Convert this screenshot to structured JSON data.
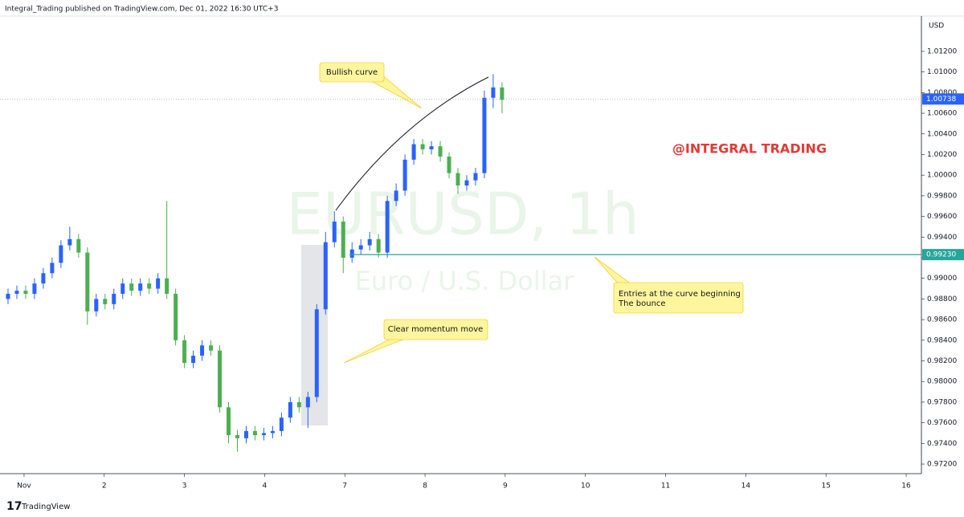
{
  "header": "Integral_Trading published on TradingView.com, Dec 01, 2022 16:30 UTC+3",
  "footer": "TradingView",
  "chart_data": {
    "type": "candlestick",
    "watermark": "EURUSD, 1h",
    "watermark_subtitle": "Euro / U.S. Dollar",
    "brand": "@INTEGRAL TRADING",
    "y_axis_unit": "USD",
    "up_color": "#2962ff",
    "down_color": "#4caf50",
    "grid": false,
    "annotations": {
      "bullish": "Bullish curve",
      "momentum": "Clear momentum move",
      "entries": [
        "Entries at the curve beginning",
        "The bounce"
      ]
    },
    "last_price": {
      "value": 1.00738,
      "label": "1.00738"
    },
    "level": {
      "value": 0.9923,
      "label": "0.99230"
    },
    "xlim": [
      -0.3,
      11.19
    ],
    "xticks": [
      {
        "value": 0,
        "label": "Nov"
      },
      {
        "value": 1,
        "label": "2"
      },
      {
        "value": 2,
        "label": "3"
      },
      {
        "value": 3,
        "label": "4"
      },
      {
        "value": 4,
        "label": "7"
      },
      {
        "value": 5,
        "label": "8"
      },
      {
        "value": 6,
        "label": "9"
      },
      {
        "value": 7,
        "label": "10"
      },
      {
        "value": 8,
        "label": "11"
      },
      {
        "value": 9,
        "label": "14"
      },
      {
        "value": 10,
        "label": "15"
      },
      {
        "value": 11,
        "label": "16"
      }
    ],
    "ylim": [
      0.97107,
      1.01542
    ],
    "yticks": [
      {
        "value": 0.972,
        "label": "0.97200"
      },
      {
        "value": 0.974,
        "label": "0.97400"
      },
      {
        "value": 0.976,
        "label": "0.97600"
      },
      {
        "value": 0.978,
        "label": "0.97800"
      },
      {
        "value": 0.98,
        "label": "0.98000"
      },
      {
        "value": 0.982,
        "label": "0.98200"
      },
      {
        "value": 0.984,
        "label": "0.98400"
      },
      {
        "value": 0.986,
        "label": "0.98600"
      },
      {
        "value": 0.988,
        "label": "0.98800"
      },
      {
        "value": 0.99,
        "label": "0.99000"
      },
      {
        "value": 0.992,
        "label": "0.99200"
      },
      {
        "value": 0.994,
        "label": "0.99400"
      },
      {
        "value": 0.996,
        "label": "0.99600"
      },
      {
        "value": 0.998,
        "label": "0.99800"
      },
      {
        "value": 1.0,
        "label": "1.00000"
      },
      {
        "value": 1.002,
        "label": "1.00200"
      },
      {
        "value": 1.004,
        "label": "1.00400"
      },
      {
        "value": 1.006,
        "label": "1.00600"
      },
      {
        "value": 1.008,
        "label": "1.00800"
      },
      {
        "value": 1.01,
        "label": "1.01000"
      },
      {
        "value": 1.012,
        "label": "1.01200"
      }
    ],
    "x": [
      -0.2,
      -0.09,
      0.02,
      0.13,
      0.24,
      0.35,
      0.46,
      0.57,
      0.68,
      0.79,
      0.9,
      1.01,
      1.12,
      1.23,
      1.34,
      1.45,
      1.56,
      1.67,
      1.78,
      1.89,
      2.0,
      2.11,
      2.22,
      2.33,
      2.44,
      2.55,
      2.66,
      2.77,
      2.88,
      2.99,
      3.1,
      3.21,
      3.32,
      3.43,
      3.54,
      3.65,
      3.76,
      3.87,
      3.98,
      4.09,
      4.2,
      4.31,
      4.42,
      4.53,
      4.64,
      4.75,
      4.86,
      4.97,
      5.08,
      5.19,
      5.3,
      5.41,
      5.52,
      5.63,
      5.74,
      5.85,
      5.96
    ],
    "open": [
      0.988,
      0.9885,
      0.9888,
      0.9885,
      0.9895,
      0.9905,
      0.9915,
      0.9932,
      0.9938,
      0.9925,
      0.9868,
      0.988,
      0.9875,
      0.9885,
      0.9895,
      0.9888,
      0.9895,
      0.989,
      0.99,
      0.9885,
      0.984,
      0.9818,
      0.9825,
      0.9835,
      0.983,
      0.9775,
      0.9748,
      0.9745,
      0.9752,
      0.9748,
      0.975,
      0.9752,
      0.9765,
      0.978,
      0.9775,
      0.9785,
      0.987,
      0.9935,
      0.9955,
      0.992,
      0.9928,
      0.9932,
      0.9938,
      0.9925,
      0.9975,
      0.9985,
      1.0015,
      1.003,
      1.0025,
      1.0028,
      1.0018,
      1.0002,
      0.999,
      0.9995,
      1.0002,
      1.0075,
      1.0085
    ],
    "high": [
      0.989,
      0.9893,
      0.9893,
      0.99,
      0.991,
      0.992,
      0.9937,
      0.995,
      0.9943,
      0.993,
      0.9885,
      0.9885,
      0.989,
      0.99,
      0.99,
      0.99,
      0.99,
      0.9905,
      0.9975,
      0.989,
      0.9845,
      0.983,
      0.984,
      0.984,
      0.9835,
      0.978,
      0.9753,
      0.9757,
      0.9757,
      0.9755,
      0.9757,
      0.977,
      0.9785,
      0.9785,
      0.979,
      0.9875,
      0.9945,
      0.9965,
      0.996,
      0.9935,
      0.9938,
      0.9945,
      0.9943,
      0.998,
      0.9992,
      1.002,
      1.0035,
      1.0035,
      1.0033,
      1.0033,
      1.0022,
      1.0007,
      1.0,
      1.0007,
      1.0082,
      1.0098,
      1.009
    ],
    "low": [
      0.9875,
      0.988,
      0.988,
      0.988,
      0.989,
      0.99,
      0.991,
      0.9927,
      0.992,
      0.9855,
      0.9863,
      0.987,
      0.987,
      0.988,
      0.9883,
      0.9883,
      0.9885,
      0.9885,
      0.988,
      0.9835,
      0.9813,
      0.9813,
      0.982,
      0.9825,
      0.977,
      0.974,
      0.9732,
      0.974,
      0.9743,
      0.9743,
      0.9745,
      0.9747,
      0.976,
      0.977,
      0.9755,
      0.978,
      0.9865,
      0.993,
      0.9905,
      0.9915,
      0.9923,
      0.9927,
      0.992,
      0.992,
      0.997,
      0.998,
      1.001,
      1.002,
      1.002,
      1.0013,
      0.9997,
      0.9982,
      0.9985,
      0.999,
      0.9997,
      1.0065,
      1.006
    ],
    "close": [
      0.9885,
      0.9888,
      0.9885,
      0.9895,
      0.9905,
      0.9915,
      0.9932,
      0.9938,
      0.9925,
      0.9868,
      0.988,
      0.9875,
      0.9885,
      0.9895,
      0.9888,
      0.9895,
      0.989,
      0.99,
      0.9885,
      0.984,
      0.9818,
      0.9825,
      0.9835,
      0.983,
      0.9775,
      0.9748,
      0.9745,
      0.9752,
      0.9748,
      0.975,
      0.9752,
      0.9765,
      0.978,
      0.9775,
      0.9785,
      0.987,
      0.9935,
      0.9955,
      0.992,
      0.9928,
      0.9932,
      0.9938,
      0.9925,
      0.9975,
      0.9985,
      1.0015,
      1.003,
      1.0025,
      1.0028,
      1.0018,
      1.0002,
      0.999,
      0.9995,
      1.0002,
      1.0075,
      1.0085,
      1.0073
    ]
  }
}
